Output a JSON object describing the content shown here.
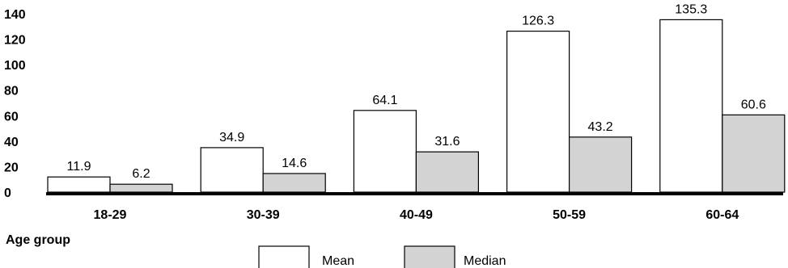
{
  "chart_data": {
    "type": "bar",
    "categories": [
      "18-29",
      "30-39",
      "40-49",
      "50-59",
      "60-64"
    ],
    "series": [
      {
        "name": "Mean",
        "values": [
          11.9,
          34.9,
          64.1,
          126.3,
          135.3
        ],
        "color": "#ffffff"
      },
      {
        "name": "Median",
        "values": [
          6.2,
          14.6,
          31.6,
          43.2,
          60.6
        ],
        "color": "#d3d3d3"
      }
    ],
    "data_labels": [
      [
        "11.9",
        "34.9",
        "64.1",
        "126.3",
        "135.3"
      ],
      [
        "6.2",
        "14.6",
        "31.6",
        "43.2",
        "60.6"
      ]
    ],
    "y_ticks": [
      0,
      20,
      40,
      60,
      80,
      100,
      120,
      140
    ],
    "xlabel": "Age group",
    "ylabel": "",
    "ylim": [
      0,
      140
    ],
    "grid": false,
    "legend_position": "bottom-center"
  }
}
